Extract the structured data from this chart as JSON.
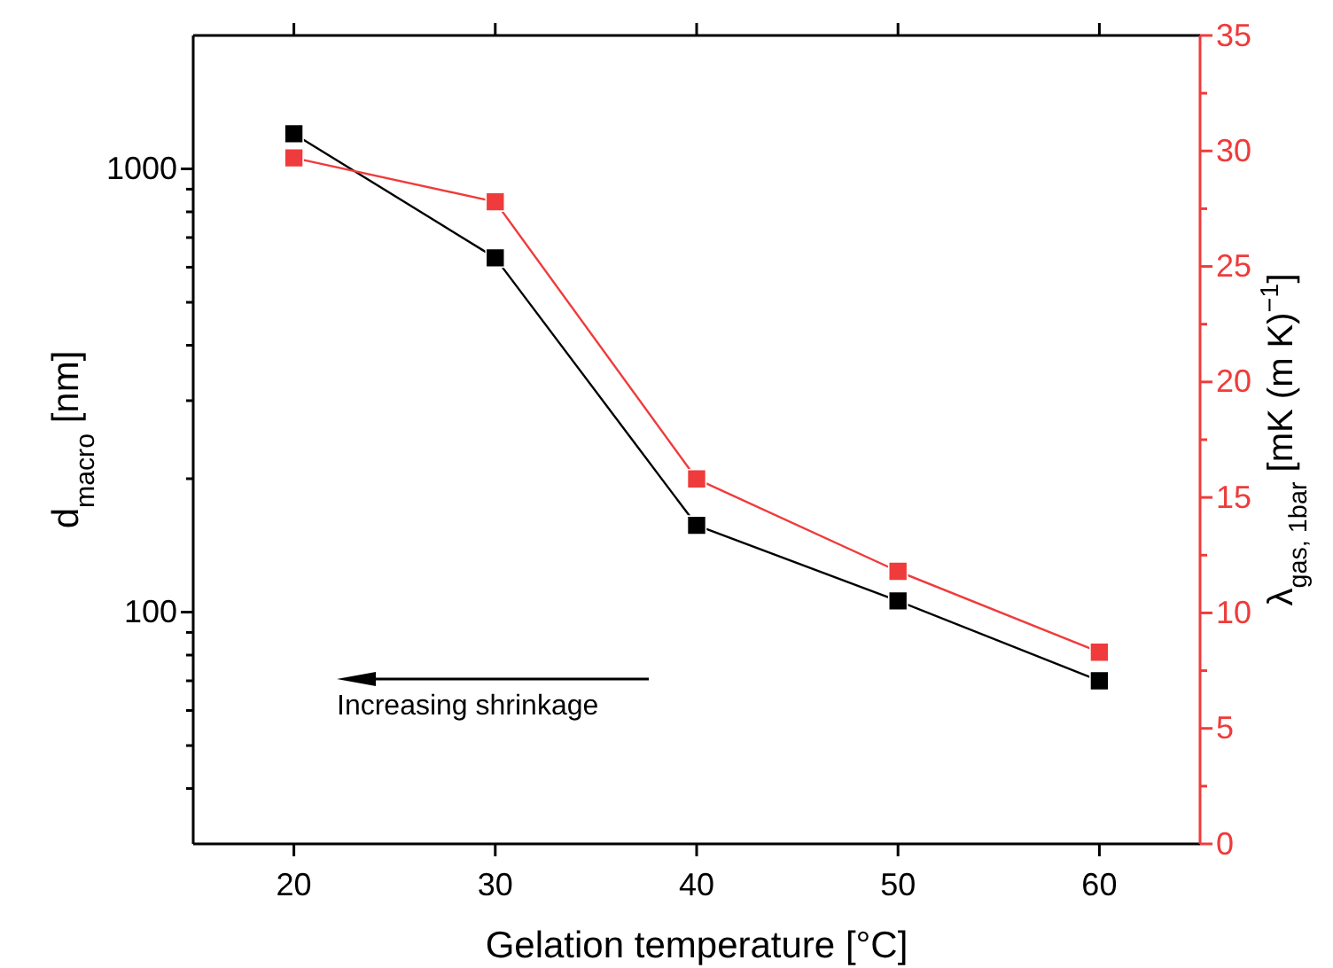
{
  "chart_data": {
    "type": "line",
    "xlabel": "Gelation temperature [°C]",
    "ylabel": "d$_{macro}$ [nm]",
    "y2label": "λ$_{gas, 1bar}$ [mK (m K)$^{−1}$]",
    "x": [
      20,
      30,
      40,
      50,
      60
    ],
    "series": [
      {
        "color": "#000000",
        "values": [
          1200,
          630,
          157,
          106,
          70
        ],
        "axis": "y"
      },
      {
        "color": "#ef3b3b",
        "values": [
          29.7,
          27.8,
          15.8,
          11.8,
          8.3
        ],
        "axis": "y2"
      }
    ],
    "xlim": [
      15,
      65
    ],
    "xticks": [
      20,
      30,
      40,
      50,
      60
    ],
    "log": "y",
    "ylim": [
      30,
      2000
    ],
    "yticks": [
      {
        "value": 40,
        "label": null
      },
      {
        "value": 50,
        "label": null
      },
      {
        "value": 60,
        "label": null
      },
      {
        "value": 70,
        "label": null
      },
      {
        "value": 80,
        "label": null
      },
      {
        "value": 90,
        "label": null
      },
      100,
      {
        "value": 200,
        "label": null
      },
      {
        "value": 300,
        "label": null
      },
      {
        "value": 400,
        "label": null
      },
      {
        "value": 500,
        "label": null
      },
      {
        "value": 600,
        "label": null
      },
      {
        "value": 700,
        "label": null
      },
      {
        "value": 800,
        "label": null
      },
      {
        "value": 900,
        "label": null
      },
      1000
    ],
    "y2lim": [
      0,
      35
    ],
    "y2ticks": [
      0,
      {
        "value": 2.5,
        "label": null
      },
      5,
      {
        "value": 7.5,
        "label": null
      },
      10,
      {
        "value": 12.5,
        "label": null
      },
      15,
      {
        "value": 17.5,
        "label": null
      },
      20,
      {
        "value": 22.5,
        "label": null
      },
      25,
      {
        "value": 27.5,
        "label": null
      },
      30,
      {
        "value": 32.5,
        "label": null
      },
      35
    ],
    "marker": "square",
    "line_style": "solid",
    "grid": false,
    "annotations": [
      "Increasing shrinkage"
    ]
  }
}
